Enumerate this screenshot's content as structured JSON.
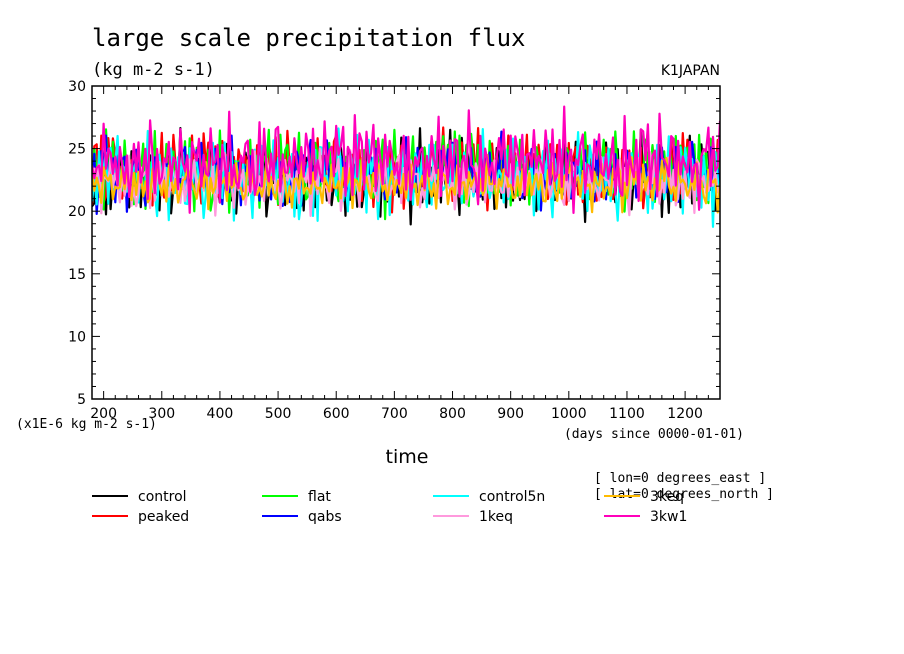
{
  "chart_data": {
    "type": "line",
    "title": "large scale precipitation flux",
    "units": "(kg m-2 s-1)",
    "source": "K1JAPAN",
    "xlabel": "time",
    "xunits": "(days since 0000-01-01)",
    "yscale_note": "(x1E-6 kg m-2 s-1)",
    "xlim": [
      180,
      1260
    ],
    "ylim": [
      5,
      30
    ],
    "xticks": [
      200,
      300,
      400,
      500,
      600,
      700,
      800,
      900,
      1000,
      1100,
      1200
    ],
    "yticks": [
      5,
      10,
      15,
      20,
      25,
      30
    ],
    "info_lines": [
      "[ lon=0 degrees_east ]",
      "[ lat=0 degrees_north ]"
    ],
    "sample_step_days": 4,
    "series": [
      {
        "name": "control",
        "color": "#000000",
        "mean": 22.8,
        "amp": 1.8,
        "phase": 0.3
      },
      {
        "name": "peaked",
        "color": "#ff0000",
        "mean": 23.4,
        "amp": 1.7,
        "phase": 1.1
      },
      {
        "name": "flat",
        "color": "#00ff00",
        "mean": 23.3,
        "amp": 1.8,
        "phase": 2.0
      },
      {
        "name": "qabs",
        "color": "#0000ff",
        "mean": 22.9,
        "amp": 1.5,
        "phase": 2.7
      },
      {
        "name": "control5n",
        "color": "#00ffff",
        "mean": 22.6,
        "amp": 1.9,
        "phase": 3.5
      },
      {
        "name": "1keq",
        "color": "#ff99dd",
        "mean": 22.3,
        "amp": 1.2,
        "phase": 4.2
      },
      {
        "name": "3keq",
        "color": "#ffbb00",
        "mean": 22.2,
        "amp": 1.0,
        "phase": 5.0
      },
      {
        "name": "3kw1",
        "color": "#ff00bb",
        "mean": 24.0,
        "amp": 2.0,
        "phase": 5.8
      }
    ]
  }
}
